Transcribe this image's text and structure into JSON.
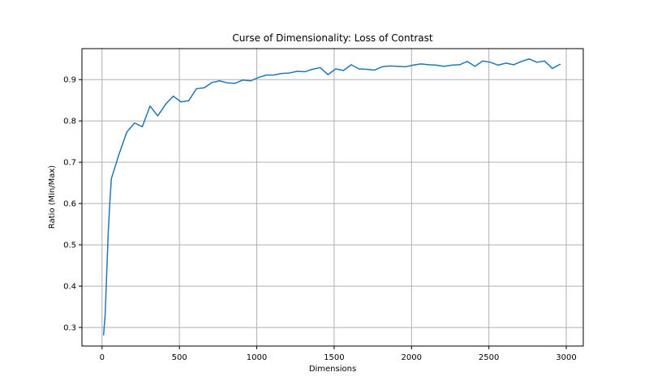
{
  "chart_data": {
    "type": "line",
    "title": "Curse of Dimensionality: Loss of Contrast",
    "xlabel": "Dimensions",
    "ylabel": "Ratio (Min/Max)",
    "xlim": [
      -130,
      3110
    ],
    "ylim": [
      0.255,
      0.975
    ],
    "x_ticks": [
      0,
      500,
      1000,
      1500,
      2000,
      2500,
      3000
    ],
    "x_tick_labels": [
      "0",
      "500",
      "1000",
      "1500",
      "2000",
      "2500",
      "3000"
    ],
    "y_ticks": [
      0.3,
      0.4,
      0.5,
      0.6,
      0.7,
      0.8,
      0.9
    ],
    "y_tick_labels": [
      "0.3",
      "0.4",
      "0.5",
      "0.6",
      "0.7",
      "0.8",
      "0.9"
    ],
    "grid": true,
    "colors": {
      "series": "#1f77b4",
      "grid": "#b0b0b0",
      "axes": "#000000"
    },
    "series": [
      {
        "x": [
          10,
          20,
          30,
          40,
          50,
          60,
          110,
          160,
          210,
          260,
          310,
          360,
          410,
          460,
          510,
          560,
          610,
          660,
          710,
          760,
          810,
          860,
          910,
          960,
          1010,
          1060,
          1110,
          1160,
          1210,
          1260,
          1310,
          1360,
          1410,
          1460,
          1510,
          1560,
          1610,
          1660,
          1710,
          1760,
          1810,
          1860,
          1910,
          1960,
          2010,
          2060,
          2110,
          2160,
          2210,
          2260,
          2310,
          2360,
          2410,
          2460,
          2510,
          2560,
          2610,
          2660,
          2710,
          2760,
          2810,
          2860,
          2910,
          2960
        ],
        "values": [
          0.282,
          0.33,
          0.43,
          0.53,
          0.6,
          0.66,
          0.72,
          0.773,
          0.795,
          0.786,
          0.836,
          0.812,
          0.84,
          0.86,
          0.846,
          0.849,
          0.878,
          0.88,
          0.893,
          0.897,
          0.892,
          0.891,
          0.899,
          0.897,
          0.905,
          0.911,
          0.911,
          0.915,
          0.916,
          0.92,
          0.919,
          0.925,
          0.929,
          0.912,
          0.926,
          0.922,
          0.936,
          0.926,
          0.925,
          0.923,
          0.931,
          0.933,
          0.932,
          0.931,
          0.935,
          0.938,
          0.936,
          0.935,
          0.932,
          0.935,
          0.936,
          0.944,
          0.932,
          0.945,
          0.942,
          0.935,
          0.94,
          0.936,
          0.944,
          0.95,
          0.942,
          0.945,
          0.927,
          0.937
        ]
      }
    ]
  }
}
